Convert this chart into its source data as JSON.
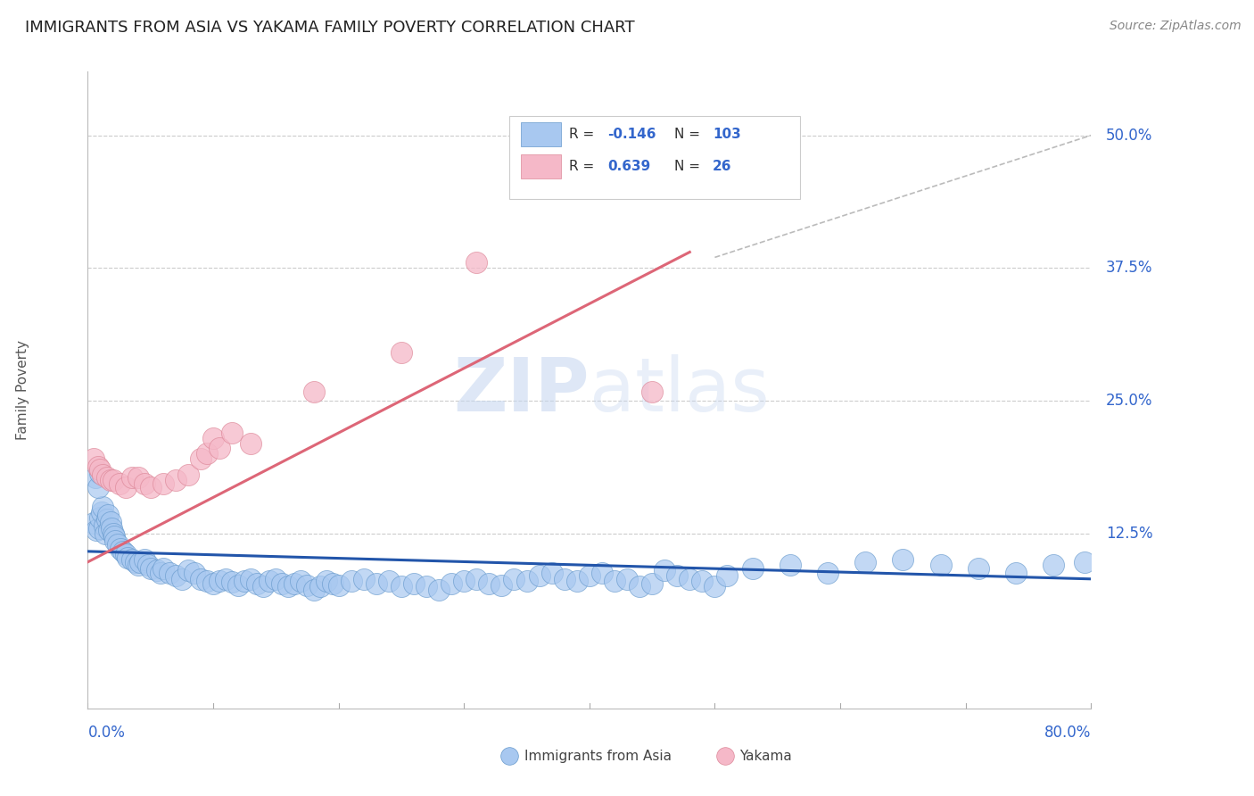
{
  "title": "IMMIGRANTS FROM ASIA VS YAKAMA FAMILY POVERTY CORRELATION CHART",
  "source": "Source: ZipAtlas.com",
  "ylabel": "Family Poverty",
  "xlim": [
    0.0,
    0.8
  ],
  "ylim": [
    -0.04,
    0.56
  ],
  "legend_r_blue": "-0.146",
  "legend_n_blue": "103",
  "legend_r_pink": "0.639",
  "legend_n_pink": "26",
  "blue_color": "#A8C8F0",
  "blue_edge_color": "#6699CC",
  "pink_color": "#F5B8C8",
  "pink_edge_color": "#DD8899",
  "blue_line_color": "#2255AA",
  "pink_line_color": "#DD6677",
  "gray_dash_color": "#BBBBBB",
  "watermark_color": "#DDDDEE",
  "background_color": "#FFFFFF",
  "grid_color": "#CCCCCC",
  "blue_trend_x": [
    0.0,
    0.8
  ],
  "blue_trend_y": [
    0.108,
    0.082
  ],
  "pink_trend_x": [
    0.0,
    0.48
  ],
  "pink_trend_y": [
    0.098,
    0.39
  ],
  "blue_scatter_x": [
    0.005,
    0.007,
    0.009,
    0.01,
    0.011,
    0.012,
    0.013,
    0.014,
    0.015,
    0.016,
    0.017,
    0.018,
    0.019,
    0.02,
    0.021,
    0.022,
    0.024,
    0.026,
    0.028,
    0.03,
    0.032,
    0.035,
    0.038,
    0.04,
    0.042,
    0.045,
    0.048,
    0.05,
    0.055,
    0.058,
    0.06,
    0.065,
    0.07,
    0.075,
    0.08,
    0.085,
    0.09,
    0.095,
    0.1,
    0.105,
    0.11,
    0.115,
    0.12,
    0.125,
    0.13,
    0.135,
    0.14,
    0.145,
    0.15,
    0.155,
    0.16,
    0.165,
    0.17,
    0.175,
    0.18,
    0.185,
    0.19,
    0.195,
    0.2,
    0.21,
    0.22,
    0.23,
    0.24,
    0.25,
    0.26,
    0.27,
    0.28,
    0.29,
    0.3,
    0.31,
    0.32,
    0.33,
    0.34,
    0.35,
    0.36,
    0.37,
    0.38,
    0.39,
    0.4,
    0.41,
    0.42,
    0.43,
    0.44,
    0.45,
    0.46,
    0.47,
    0.48,
    0.49,
    0.5,
    0.51,
    0.53,
    0.56,
    0.59,
    0.62,
    0.65,
    0.68,
    0.71,
    0.74,
    0.77,
    0.795,
    0.006,
    0.008,
    0.01
  ],
  "blue_scatter_y": [
    0.135,
    0.128,
    0.13,
    0.14,
    0.145,
    0.15,
    0.132,
    0.125,
    0.138,
    0.142,
    0.128,
    0.136,
    0.13,
    0.125,
    0.122,
    0.118,
    0.115,
    0.11,
    0.108,
    0.105,
    0.102,
    0.1,
    0.098,
    0.095,
    0.098,
    0.1,
    0.095,
    0.092,
    0.09,
    0.088,
    0.092,
    0.088,
    0.085,
    0.082,
    0.09,
    0.088,
    0.082,
    0.08,
    0.078,
    0.08,
    0.082,
    0.079,
    0.076,
    0.08,
    0.082,
    0.078,
    0.075,
    0.08,
    0.082,
    0.078,
    0.075,
    0.078,
    0.08,
    0.076,
    0.072,
    0.075,
    0.08,
    0.078,
    0.076,
    0.08,
    0.082,
    0.078,
    0.08,
    0.075,
    0.078,
    0.075,
    0.072,
    0.078,
    0.08,
    0.082,
    0.078,
    0.076,
    0.082,
    0.08,
    0.085,
    0.088,
    0.082,
    0.08,
    0.085,
    0.088,
    0.08,
    0.082,
    0.075,
    0.078,
    0.09,
    0.085,
    0.082,
    0.08,
    0.075,
    0.085,
    0.092,
    0.095,
    0.088,
    0.098,
    0.1,
    0.095,
    0.092,
    0.088,
    0.095,
    0.098,
    0.178,
    0.168,
    0.182
  ],
  "pink_scatter_x": [
    0.005,
    0.008,
    0.01,
    0.012,
    0.015,
    0.018,
    0.02,
    0.025,
    0.03,
    0.035,
    0.04,
    0.045,
    0.05,
    0.06,
    0.07,
    0.08,
    0.09,
    0.095,
    0.1,
    0.105,
    0.115,
    0.13,
    0.18,
    0.25,
    0.31,
    0.45
  ],
  "pink_scatter_y": [
    0.195,
    0.188,
    0.185,
    0.18,
    0.178,
    0.175,
    0.175,
    0.172,
    0.168,
    0.178,
    0.178,
    0.172,
    0.168,
    0.172,
    0.175,
    0.18,
    0.195,
    0.2,
    0.215,
    0.205,
    0.22,
    0.21,
    0.258,
    0.295,
    0.38,
    0.258
  ]
}
